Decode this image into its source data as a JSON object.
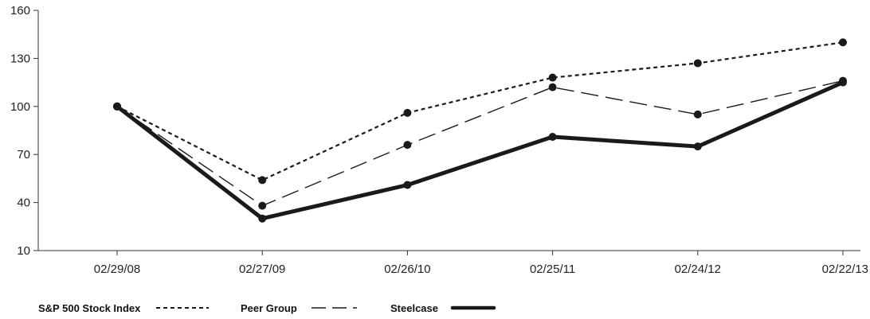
{
  "chart_data": {
    "type": "line",
    "title": "",
    "xlabel": "",
    "ylabel": "",
    "categories": [
      "02/29/08",
      "02/27/09",
      "02/26/10",
      "02/25/11",
      "02/24/12",
      "02/22/13"
    ],
    "ylim": [
      10,
      160
    ],
    "yticks": [
      10,
      40,
      70,
      100,
      130,
      160
    ],
    "grid": false,
    "legend_position": "bottom-left",
    "series": [
      {
        "name": "S&P 500 Stock Index",
        "style": "dotted",
        "color": "#1a1a1a",
        "values": [
          100,
          54,
          96,
          118,
          127,
          140
        ]
      },
      {
        "name": "Peer Group",
        "style": "dashed",
        "color": "#1a1a1a",
        "values": [
          100,
          38,
          76,
          112,
          95,
          116
        ]
      },
      {
        "name": "Steelcase",
        "style": "solid-thick",
        "color": "#1a1a1a",
        "values": [
          100,
          30,
          51,
          81,
          75,
          115
        ]
      }
    ]
  }
}
